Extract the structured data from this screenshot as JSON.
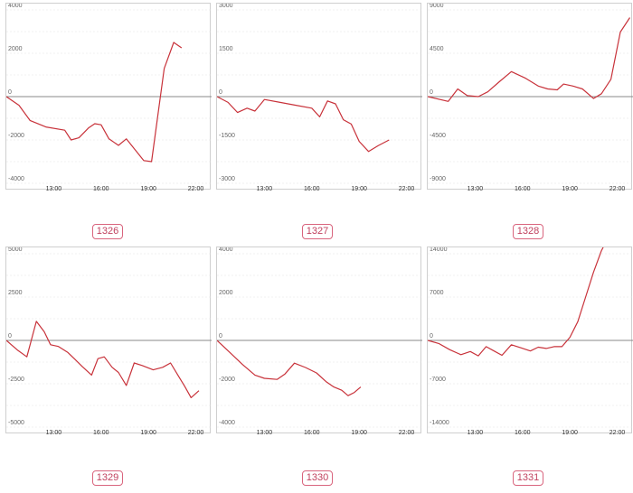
{
  "line_color": "#c8323a",
  "grid_color": "#e6e6e6",
  "zero_line_color": "#888888",
  "badge_color": "#d9657e",
  "chart_data": [
    {
      "type": "line",
      "label": "1326",
      "ylim": [
        -4000,
        4000
      ],
      "yticks": [
        4000,
        2000,
        0,
        -2000,
        -4000
      ],
      "xticks": [
        "13:00",
        "16:00",
        "19:00",
        "22:00"
      ],
      "xlim": [
        10,
        23
      ],
      "series": [
        {
          "x": [
            10.0,
            10.8,
            11.5,
            12.5,
            13.7,
            14.1,
            14.6,
            15.2,
            15.6,
            16.0,
            16.5,
            17.1,
            17.6,
            18.1,
            18.7,
            19.2,
            20.0,
            20.6,
            21.1
          ],
          "values": [
            0,
            -400,
            -1100,
            -1400,
            -1550,
            -2000,
            -1900,
            -1450,
            -1250,
            -1300,
            -1950,
            -2250,
            -1950,
            -2400,
            -2950,
            -3000,
            1300,
            2500,
            2250
          ]
        }
      ]
    },
    {
      "type": "line",
      "label": "1327",
      "ylim": [
        -3000,
        3000
      ],
      "yticks": [
        3000,
        1500,
        0,
        -1500,
        -3000
      ],
      "xticks": [
        "13:00",
        "16:00",
        "19:00",
        "22:00"
      ],
      "xlim": [
        10,
        23
      ],
      "series": [
        {
          "x": [
            10.0,
            10.7,
            11.3,
            11.9,
            12.4,
            13.0,
            14.0,
            15.0,
            16.0,
            16.5,
            17.0,
            17.5,
            18.0,
            18.5,
            19.0,
            19.6,
            20.2,
            20.9
          ],
          "values": [
            0,
            -200,
            -550,
            -400,
            -500,
            -100,
            -200,
            -300,
            -400,
            -700,
            -150,
            -250,
            -800,
            -950,
            -1550,
            -1900,
            -1700,
            -1500
          ]
        }
      ]
    },
    {
      "type": "line",
      "label": "1328",
      "ylim": [
        -9000,
        9000
      ],
      "yticks": [
        9000,
        4500,
        0,
        -4500,
        -9000
      ],
      "xticks": [
        "13:00",
        "16:00",
        "19:00",
        "22:00"
      ],
      "xlim": [
        10,
        23
      ],
      "series": [
        {
          "x": [
            10.0,
            11.3,
            11.9,
            12.5,
            13.2,
            13.8,
            14.5,
            15.3,
            16.2,
            17.0,
            17.6,
            18.2,
            18.6,
            19.2,
            19.8,
            20.5,
            21.0,
            21.6,
            22.2,
            22.8
          ],
          "values": [
            0,
            -500,
            800,
            100,
            0,
            500,
            1500,
            2600,
            1900,
            1100,
            800,
            700,
            1300,
            1100,
            800,
            -200,
            300,
            1800,
            6700,
            8200
          ]
        }
      ]
    },
    {
      "type": "line",
      "label": "1329",
      "ylim": [
        -5000,
        5000
      ],
      "yticks": [
        5000,
        2500,
        0,
        -2500,
        -5000
      ],
      "xticks": [
        "13:00",
        "16:00",
        "19:00",
        "22:00"
      ],
      "xlim": [
        10,
        23
      ],
      "series": [
        {
          "x": [
            10.0,
            10.7,
            11.3,
            11.9,
            12.4,
            12.8,
            13.3,
            13.9,
            14.3,
            14.8,
            15.4,
            15.8,
            16.2,
            16.7,
            17.1,
            17.6,
            18.1,
            18.6,
            19.3,
            19.9,
            20.4,
            20.9,
            21.3,
            21.7,
            22.2
          ],
          "values": [
            0,
            -550,
            -950,
            1100,
            500,
            -250,
            -350,
            -700,
            -1050,
            -1500,
            -2000,
            -1050,
            -950,
            -1550,
            -1850,
            -2600,
            -1300,
            -1450,
            -1700,
            -1550,
            -1300,
            -2050,
            -2650,
            -3300,
            -2900
          ]
        }
      ]
    },
    {
      "type": "line",
      "label": "1330",
      "ylim": [
        -4000,
        4000
      ],
      "yticks": [
        4000,
        2000,
        0,
        -2000,
        -4000
      ],
      "xticks": [
        "13:00",
        "16:00",
        "19:00",
        "22:00"
      ],
      "xlim": [
        10,
        23
      ],
      "series": [
        {
          "x": [
            10.0,
            10.8,
            11.6,
            12.4,
            13.0,
            13.8,
            14.3,
            14.9,
            15.6,
            16.3,
            16.9,
            17.4,
            17.9,
            18.3,
            18.7,
            19.1
          ],
          "values": [
            0,
            -550,
            -1100,
            -1600,
            -1750,
            -1800,
            -1550,
            -1050,
            -1250,
            -1500,
            -1900,
            -2150,
            -2300,
            -2550,
            -2400,
            -2150
          ]
        }
      ]
    },
    {
      "type": "line",
      "label": "1331",
      "ylim": [
        -14000,
        14000
      ],
      "yticks": [
        14000,
        7000,
        0,
        -7000,
        -14000
      ],
      "xticks": [
        "13:00",
        "16:00",
        "19:00",
        "22:00"
      ],
      "xlim": [
        10,
        23
      ],
      "series": [
        {
          "x": [
            10.0,
            10.7,
            11.4,
            12.1,
            12.7,
            13.2,
            13.7,
            14.2,
            14.7,
            15.3,
            15.9,
            16.5,
            17.0,
            17.5,
            18.0,
            18.5,
            19.0,
            19.5,
            20.0,
            20.5,
            21.0,
            21.6,
            22.1
          ],
          "values": [
            0,
            -500,
            -1500,
            -2300,
            -1800,
            -2500,
            -1000,
            -1700,
            -2400,
            -700,
            -1200,
            -1700,
            -1100,
            -1300,
            -1000,
            -1000,
            500,
            3000,
            7000,
            11000,
            14500,
            17500,
            17200
          ]
        }
      ]
    }
  ]
}
